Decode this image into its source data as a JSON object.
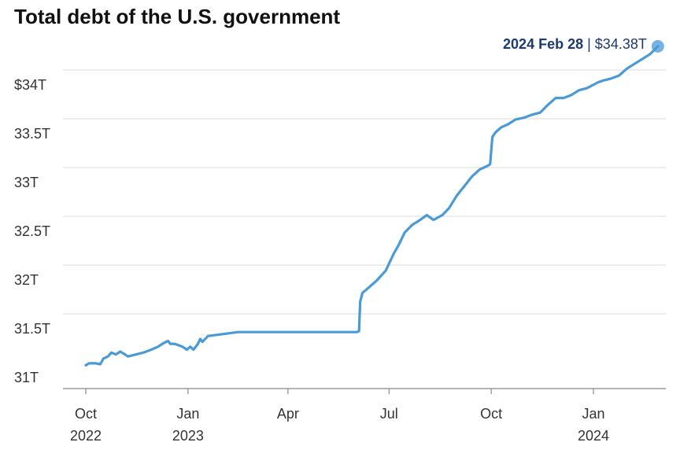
{
  "chart_data": {
    "type": "line",
    "title": "Total debt of the U.S. government",
    "xlabel": "",
    "ylabel": "",
    "ylim": [
      31,
      34.38
    ],
    "grid": true,
    "legend": "none",
    "y_ticks": [
      {
        "value": 31,
        "label": "31T"
      },
      {
        "value": 31.5,
        "label": "31.5T"
      },
      {
        "value": 32,
        "label": "32T"
      },
      {
        "value": 32.5,
        "label": "32.5T"
      },
      {
        "value": 33,
        "label": "33T"
      },
      {
        "value": 33.5,
        "label": "33.5T"
      },
      {
        "value": 34,
        "label": "$34T"
      }
    ],
    "x_ticks": [
      {
        "date": "2022-10-01",
        "line1": "Oct",
        "line2": "2022"
      },
      {
        "date": "2023-01-01",
        "line1": "Jan",
        "line2": "2023"
      },
      {
        "date": "2023-04-01",
        "line1": "Apr",
        "line2": ""
      },
      {
        "date": "2023-07-01",
        "line1": "Jul",
        "line2": ""
      },
      {
        "date": "2023-10-01",
        "line1": "Oct",
        "line2": ""
      },
      {
        "date": "2024-01-01",
        "line1": "Jan",
        "line2": "2024"
      }
    ],
    "annotation": {
      "date_label": "2024 Feb 28",
      "separator": " | ",
      "value_label": "$34.38T",
      "date": "2024-02-28",
      "value": 34.38
    },
    "line_color": "#4a9ad8",
    "series": [
      {
        "points": [
          [
            "2022-10-01",
            31.11
          ],
          [
            "2022-10-04",
            31.13
          ],
          [
            "2022-10-10",
            31.13
          ],
          [
            "2022-10-14",
            31.12
          ],
          [
            "2022-10-17",
            31.18
          ],
          [
            "2022-10-21",
            31.2
          ],
          [
            "2022-10-24",
            31.24
          ],
          [
            "2022-10-28",
            31.22
          ],
          [
            "2022-11-01",
            31.25
          ],
          [
            "2022-11-04",
            31.23
          ],
          [
            "2022-11-08",
            31.2
          ],
          [
            "2022-11-15",
            31.22
          ],
          [
            "2022-11-22",
            31.24
          ],
          [
            "2022-11-29",
            31.27
          ],
          [
            "2022-12-05",
            31.3
          ],
          [
            "2022-12-09",
            31.33
          ],
          [
            "2022-12-14",
            31.36
          ],
          [
            "2022-12-16",
            31.33
          ],
          [
            "2022-12-20",
            31.33
          ],
          [
            "2022-12-27",
            31.3
          ],
          [
            "2022-12-31",
            31.27
          ],
          [
            "2023-01-03",
            31.3
          ],
          [
            "2023-01-06",
            31.27
          ],
          [
            "2023-01-10",
            31.33
          ],
          [
            "2023-01-12",
            31.38
          ],
          [
            "2023-01-14",
            31.35
          ],
          [
            "2023-01-19",
            31.41
          ],
          [
            "2023-02-15",
            31.45
          ],
          [
            "2023-03-15",
            31.45
          ],
          [
            "2023-04-15",
            31.45
          ],
          [
            "2023-05-15",
            31.45
          ],
          [
            "2023-06-02",
            31.45
          ],
          [
            "2023-06-04",
            31.46
          ],
          [
            "2023-06-05",
            31.76
          ],
          [
            "2023-06-07",
            31.85
          ],
          [
            "2023-06-12",
            31.9
          ],
          [
            "2023-06-20",
            31.98
          ],
          [
            "2023-06-28",
            32.08
          ],
          [
            "2023-07-05",
            32.25
          ],
          [
            "2023-07-10",
            32.35
          ],
          [
            "2023-07-15",
            32.47
          ],
          [
            "2023-07-22",
            32.55
          ],
          [
            "2023-07-29",
            32.6
          ],
          [
            "2023-08-04",
            32.65
          ],
          [
            "2023-08-10",
            32.6
          ],
          [
            "2023-08-18",
            32.65
          ],
          [
            "2023-08-24",
            32.72
          ],
          [
            "2023-08-31",
            32.85
          ],
          [
            "2023-09-07",
            32.95
          ],
          [
            "2023-09-14",
            33.05
          ],
          [
            "2023-09-21",
            33.12
          ],
          [
            "2023-09-27",
            33.15
          ],
          [
            "2023-09-30",
            33.17
          ],
          [
            "2023-10-02",
            33.45
          ],
          [
            "2023-10-05",
            33.5
          ],
          [
            "2023-10-10",
            33.55
          ],
          [
            "2023-10-16",
            33.58
          ],
          [
            "2023-10-23",
            33.63
          ],
          [
            "2023-10-31",
            33.65
          ],
          [
            "2023-11-07",
            33.68
          ],
          [
            "2023-11-14",
            33.7
          ],
          [
            "2023-11-21",
            33.78
          ],
          [
            "2023-11-28",
            33.85
          ],
          [
            "2023-12-05",
            33.85
          ],
          [
            "2023-12-12",
            33.88
          ],
          [
            "2023-12-19",
            33.93
          ],
          [
            "2023-12-26",
            33.95
          ],
          [
            "2023-12-31",
            33.98
          ],
          [
            "2024-01-05",
            34.01
          ],
          [
            "2024-01-10",
            34.03
          ],
          [
            "2024-01-17",
            34.05
          ],
          [
            "2024-01-24",
            34.08
          ],
          [
            "2024-01-31",
            34.15
          ],
          [
            "2024-02-07",
            34.2
          ],
          [
            "2024-02-14",
            34.25
          ],
          [
            "2024-02-21",
            34.3
          ],
          [
            "2024-02-28",
            34.38
          ]
        ]
      }
    ]
  }
}
